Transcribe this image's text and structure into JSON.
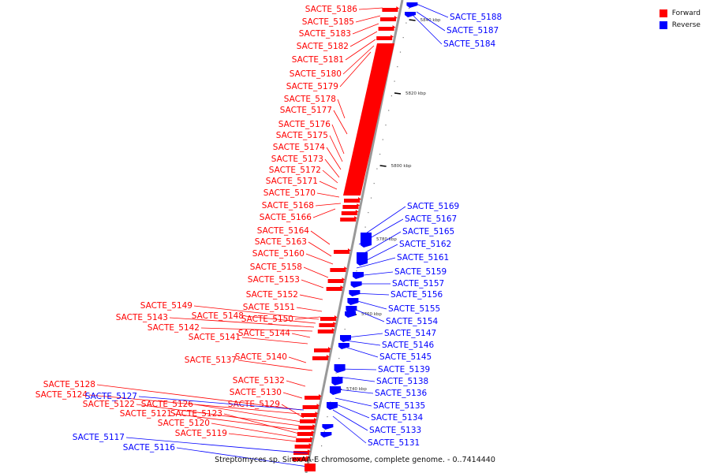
{
  "caption": "Streptomyces sp. SirexAA-E chromosome, complete genome. - 0..7414440",
  "legend": {
    "forward": "Forward",
    "reverse": "Reverse"
  },
  "colors": {
    "forward": "#ff0000",
    "reverse": "#0000ff",
    "axis": "#888888"
  },
  "scale_labels": [
    "5840 kbp",
    "5820 kbp",
    "5800 kbp",
    "5780 kbp",
    "5760 kbp",
    "5740 kbp"
  ],
  "forward_genes": [
    "SACTE_5186",
    "SACTE_5185",
    "SACTE_5183",
    "SACTE_5182",
    "SACTE_5181",
    "SACTE_5180",
    "SACTE_5179",
    "SACTE_5178",
    "SACTE_5177",
    "SACTE_5176",
    "SACTE_5175",
    "SACTE_5174",
    "SACTE_5173",
    "SACTE_5172",
    "SACTE_5171",
    "SACTE_5170",
    "SACTE_5168",
    "SACTE_5166",
    "SACTE_5164",
    "SACTE_5163",
    "SACTE_5160",
    "SACTE_5158",
    "SACTE_5153",
    "SACTE_5152",
    "SACTE_5151",
    "SACTE_5150",
    "SACTE_5149",
    "SACTE_5148",
    "SACTE_5143",
    "SACTE_5142",
    "SACTE_5144",
    "SACTE_5141",
    "SACTE_5140",
    "SACTE_5137",
    "SACTE_5132",
    "SACTE_5130",
    "SACTE_5128",
    "SACTE_5124",
    "SACTE_5129",
    "SACTE_5126",
    "SACTE_5122",
    "SACTE_5121",
    "SACTE_5123",
    "SACTE_5120",
    "SACTE_5119"
  ],
  "reverse_genes": [
    "SACTE_5188",
    "SACTE_5187",
    "SACTE_5184",
    "SACTE_5169",
    "SACTE_5167",
    "SACTE_5165",
    "SACTE_5162",
    "SACTE_5161",
    "SACTE_5159",
    "SACTE_5157",
    "SACTE_5156",
    "SACTE_5155",
    "SACTE_5154",
    "SACTE_5147",
    "SACTE_5146",
    "SACTE_5145",
    "SACTE_5139",
    "SACTE_5138",
    "SACTE_5136",
    "SACTE_5135",
    "SACTE_5134",
    "SACTE_5133",
    "SACTE_5131",
    "SACTE_5127",
    "SACTE_5117",
    "SACTE_5116"
  ]
}
